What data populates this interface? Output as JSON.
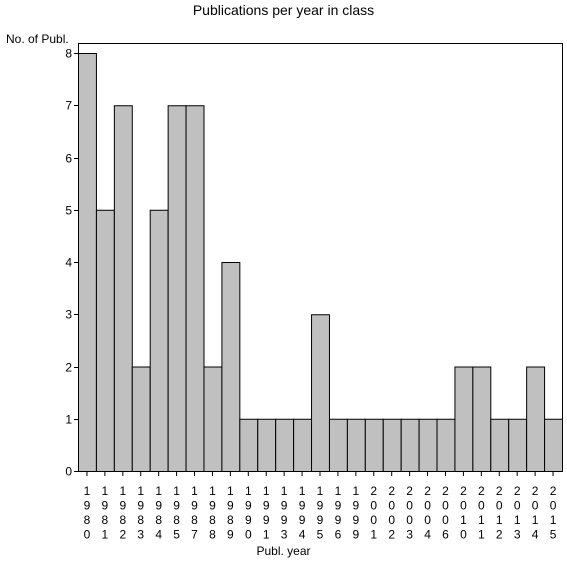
{
  "chart_data": {
    "type": "bar",
    "title": "Publications per year in class",
    "ylabel": "No. of Publ.",
    "xlabel": "Publ. year",
    "categories": [
      "1980",
      "1981",
      "1982",
      "1983",
      "1984",
      "1985",
      "1987",
      "1988",
      "1989",
      "1990",
      "1991",
      "1993",
      "1994",
      "1995",
      "1996",
      "1999",
      "2001",
      "2002",
      "2003",
      "2004",
      "2006",
      "2010",
      "2011",
      "2012",
      "2013",
      "2014",
      "2015"
    ],
    "values": [
      8,
      5,
      7,
      2,
      5,
      7,
      7,
      2,
      4,
      1,
      1,
      1,
      1,
      3,
      1,
      1,
      1,
      1,
      1,
      1,
      1,
      2,
      2,
      1,
      1,
      2,
      1
    ],
    "ylim": [
      0,
      8
    ],
    "yticks": [
      0,
      1,
      2,
      3,
      4,
      5,
      6,
      7,
      8
    ],
    "grid": false,
    "bar_color": "#c0c0c0",
    "bar_edge_color": "#000000"
  }
}
